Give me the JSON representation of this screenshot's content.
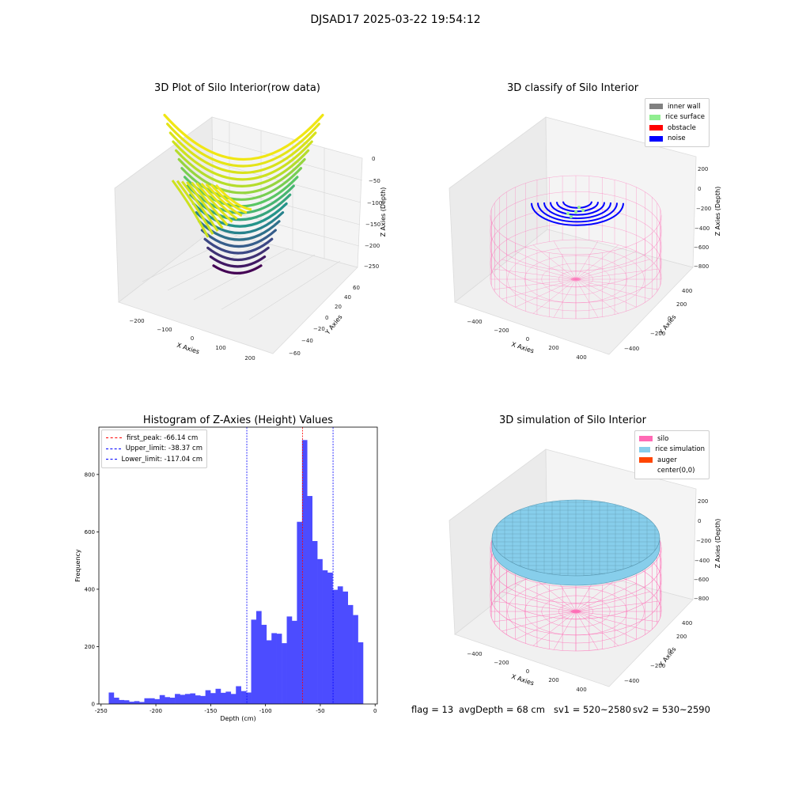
{
  "suptitle": "DJSAD17 2025-03-22 19:54:12",
  "colors": {
    "hist_bar": "#4c4cff",
    "first_peak": "#ff0000",
    "limits": "#0000ff",
    "inner_wall": "#808080",
    "rice_surface": "#90ee90",
    "obstacle": "#ff0000",
    "noise": "#0000ff",
    "silo": "#ff69b4",
    "rice_simulation": "#87ceeb",
    "auger": "#ff4500"
  },
  "charts": {
    "raw": {
      "title": "3D Plot of Silo Interior(row data)",
      "xlabel": "X Axies",
      "ylabel": "Y Axies",
      "zlabel": "Z Axies (Depth)",
      "xticks": [
        "−200",
        "−100",
        "0",
        "100",
        "200"
      ],
      "yticks": [
        "−60",
        "−40",
        "−20",
        "0",
        "20",
        "40",
        "60"
      ],
      "zticks": [
        "0",
        "−50",
        "−100",
        "−150",
        "−200",
        "−250"
      ]
    },
    "classify": {
      "title": "3D classify of Silo Interior",
      "xlabel": "X Axies",
      "ylabel": "Y Axies",
      "zlabel": "Z Axies (Depth)",
      "xticks": [
        "−400",
        "−200",
        "0",
        "200",
        "400"
      ],
      "yticks": [
        "−400",
        "−200",
        "0",
        "200",
        "400"
      ],
      "zticks": [
        "200",
        "0",
        "−200",
        "−400",
        "−600",
        "−800"
      ],
      "legend": [
        "inner wall",
        "rice surface",
        "obstacle",
        "noise"
      ]
    },
    "simulation": {
      "title": "3D simulation of Silo Interior",
      "xlabel": "X Axies",
      "ylabel": "Y Axies",
      "zlabel": "Z Axies (Depth)",
      "xticks": [
        "−400",
        "−200",
        "0",
        "200",
        "400"
      ],
      "yticks": [
        "−400",
        "−200",
        "0",
        "200",
        "400"
      ],
      "zticks": [
        "200",
        "0",
        "−200",
        "−400",
        "−600",
        "−800"
      ],
      "legend": [
        "silo",
        "rice simulation",
        "auger",
        "center(0,0)"
      ]
    }
  },
  "chart_data": {
    "type": "bar",
    "title": "Histogram of Z-Axies (Height) Values",
    "xlabel": "Depth (cm)",
    "ylabel": "Frequency",
    "xlim": [
      -252,
      2
    ],
    "ylim": [
      0,
      965
    ],
    "xticks": [
      -250,
      -200,
      -150,
      -100,
      -50,
      0
    ],
    "yticks": [
      0,
      200,
      400,
      600,
      800
    ],
    "bin_start": -243,
    "bin_width": 4.64,
    "values": [
      40,
      22,
      14,
      13,
      8,
      10,
      7,
      20,
      20,
      17,
      31,
      24,
      22,
      35,
      32,
      35,
      37,
      30,
      28,
      48,
      38,
      53,
      39,
      43,
      35,
      62,
      45,
      40,
      294,
      324,
      276,
      222,
      247,
      245,
      212,
      305,
      290,
      635,
      920,
      725,
      568,
      505,
      466,
      458,
      398,
      410,
      392,
      345,
      310,
      215
    ],
    "vlines": [
      {
        "label": "first_peak: -66.14 cm",
        "x": -66.14,
        "color": "#ff0000"
      },
      {
        "label": "Upper_limit: -38.37 cm",
        "x": -38.37,
        "color": "#0000ff"
      },
      {
        "label": "Lower_limit: -117.04 cm",
        "x": -117.04,
        "color": "#0000ff"
      }
    ]
  },
  "footer": {
    "flag": "flag = 13",
    "avg_depth": "avgDepth = 68 cm",
    "sv1": "sv1 = 520~2580",
    "sv2": "sv2 = 530~2590"
  }
}
